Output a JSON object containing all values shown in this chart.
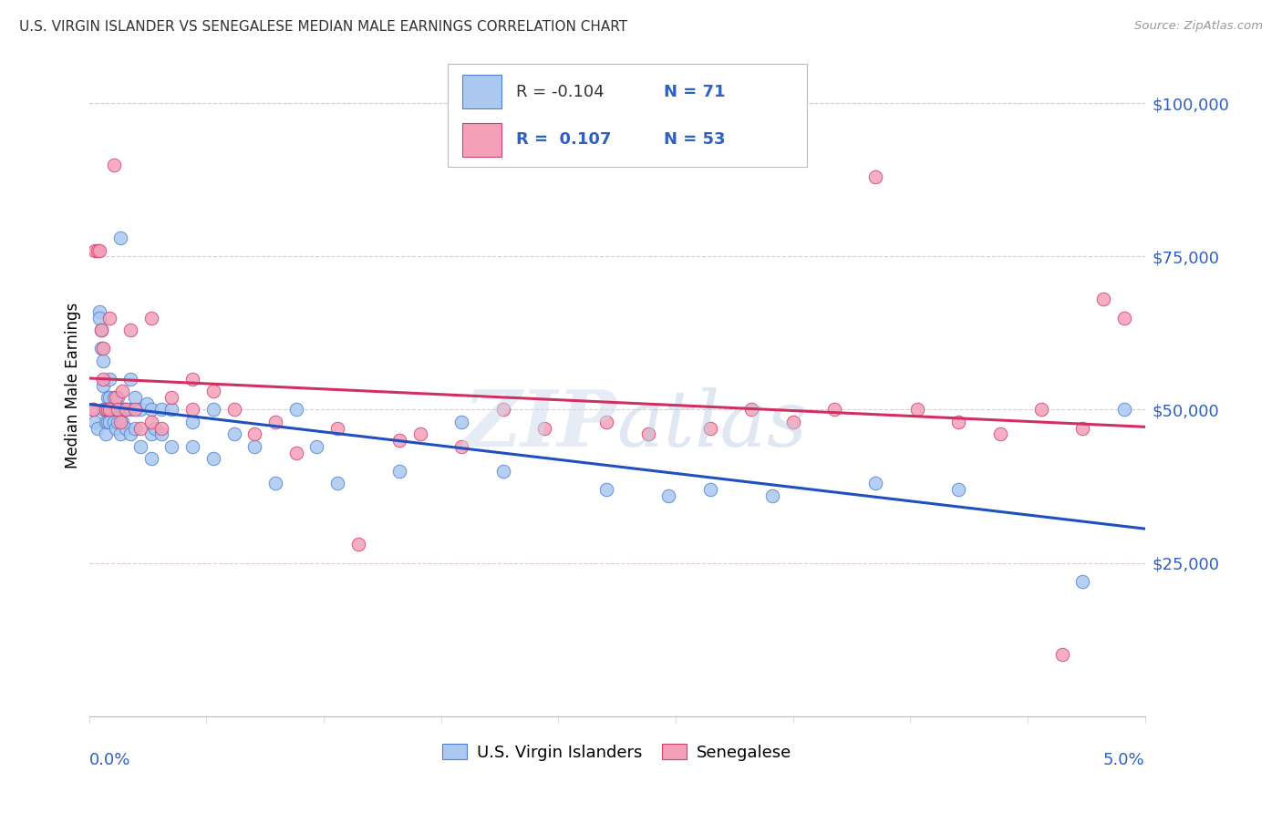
{
  "title": "U.S. VIRGIN ISLANDER VS SENEGALESE MEDIAN MALE EARNINGS CORRELATION CHART",
  "source": "Source: ZipAtlas.com",
  "ylabel": "Median Male Earnings",
  "legend_label_blue": "U.S. Virgin Islanders",
  "legend_label_pink": "Senegalese",
  "blue_color": "#aac8f0",
  "pink_color": "#f4a0b8",
  "blue_edge_color": "#5080d0",
  "pink_edge_color": "#d04070",
  "blue_line_color": "#2050c0",
  "pink_line_color": "#d03060",
  "tick_label_color": "#3060c0",
  "watermark": "ZIPatlas",
  "xlim": [
    0.0,
    0.051
  ],
  "ylim": [
    0,
    108000
  ],
  "blue_r": "-0.104",
  "blue_n": "71",
  "pink_r": "0.107",
  "pink_n": "53",
  "blue_x": [
    0.0002,
    0.0003,
    0.0004,
    0.0005,
    0.0005,
    0.0006,
    0.0006,
    0.0007,
    0.0007,
    0.0007,
    0.0008,
    0.0008,
    0.0008,
    0.0009,
    0.0009,
    0.001,
    0.001,
    0.001,
    0.001,
    0.0011,
    0.0012,
    0.0012,
    0.0012,
    0.0013,
    0.0013,
    0.0014,
    0.0014,
    0.0015,
    0.0015,
    0.0016,
    0.0016,
    0.0017,
    0.0018,
    0.0018,
    0.002,
    0.002,
    0.002,
    0.0022,
    0.0022,
    0.0025,
    0.0025,
    0.0028,
    0.003,
    0.003,
    0.003,
    0.0032,
    0.0035,
    0.0035,
    0.004,
    0.004,
    0.005,
    0.005,
    0.006,
    0.006,
    0.007,
    0.008,
    0.009,
    0.01,
    0.011,
    0.012,
    0.015,
    0.018,
    0.02,
    0.025,
    0.028,
    0.03,
    0.033,
    0.038,
    0.042,
    0.048,
    0.05
  ],
  "blue_y": [
    50000,
    48000,
    47000,
    66000,
    65000,
    63000,
    60000,
    58000,
    54000,
    50000,
    50000,
    48000,
    46000,
    52000,
    48000,
    55000,
    52000,
    50000,
    48000,
    50000,
    52000,
    50000,
    48000,
    50000,
    47000,
    52000,
    48000,
    78000,
    46000,
    50000,
    48000,
    50000,
    50000,
    47000,
    55000,
    50000,
    46000,
    52000,
    47000,
    50000,
    44000,
    51000,
    50000,
    46000,
    42000,
    47000,
    50000,
    46000,
    50000,
    44000,
    48000,
    44000,
    50000,
    42000,
    46000,
    44000,
    38000,
    50000,
    44000,
    38000,
    40000,
    48000,
    40000,
    37000,
    36000,
    37000,
    36000,
    38000,
    37000,
    22000,
    50000
  ],
  "pink_x": [
    0.0002,
    0.0003,
    0.0004,
    0.0005,
    0.0006,
    0.0007,
    0.0007,
    0.0008,
    0.0009,
    0.001,
    0.001,
    0.0012,
    0.0013,
    0.0014,
    0.0015,
    0.0016,
    0.0018,
    0.002,
    0.0022,
    0.0025,
    0.003,
    0.003,
    0.0035,
    0.004,
    0.005,
    0.005,
    0.006,
    0.007,
    0.008,
    0.009,
    0.01,
    0.012,
    0.013,
    0.015,
    0.016,
    0.018,
    0.02,
    0.022,
    0.025,
    0.027,
    0.03,
    0.032,
    0.034,
    0.036,
    0.038,
    0.04,
    0.042,
    0.044,
    0.046,
    0.047,
    0.048,
    0.049,
    0.05
  ],
  "pink_y": [
    50000,
    76000,
    76000,
    76000,
    63000,
    60000,
    55000,
    50000,
    50000,
    65000,
    50000,
    90000,
    52000,
    50000,
    48000,
    53000,
    50000,
    63000,
    50000,
    47000,
    65000,
    48000,
    47000,
    52000,
    55000,
    50000,
    53000,
    50000,
    46000,
    48000,
    43000,
    47000,
    28000,
    45000,
    46000,
    44000,
    50000,
    47000,
    48000,
    46000,
    47000,
    50000,
    48000,
    50000,
    88000,
    50000,
    48000,
    46000,
    50000,
    10000,
    47000,
    68000,
    65000
  ]
}
